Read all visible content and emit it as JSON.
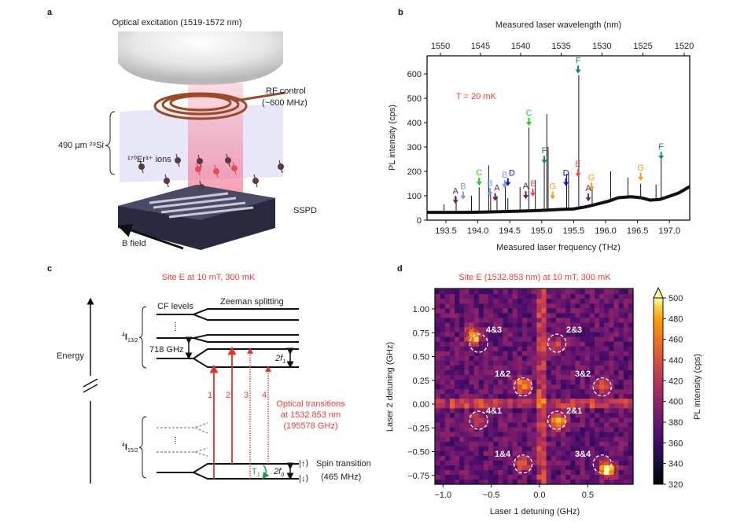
{
  "panel_letters": {
    "a": "a",
    "b": "b",
    "c": "c",
    "d": "d"
  },
  "panel_a": {
    "optical_excitation": "Optical excitation (1519-1572 nm)",
    "rf_control_1": "RF control",
    "rf_control_2": "(~600 MHz)",
    "si_thickness": "490 µm ²⁸Si",
    "ions": "¹⁷⁰Er³⁺ ions",
    "sspd": "SSPD",
    "b_field": "B field",
    "colors": {
      "coil": "#9a4a26",
      "beam": "#f7a8b8",
      "sspd": "#2a2a3e",
      "si_block": "#c9c9f0"
    }
  },
  "panel_c": {
    "title": "Site E at 10 mT, 300 mK",
    "energy": "Energy",
    "cf_levels": "CF levels",
    "zeeman": "Zeeman splitting",
    "upper_manifold": {
      "sup": "4",
      "main": "I",
      "sub": "13/2"
    },
    "lower_manifold": {
      "sup": "4",
      "main": "I",
      "sub": "15/2"
    },
    "cf_gap": "718 GHz",
    "upper_split": {
      "main": "2f",
      "sub": "1"
    },
    "lower_split": {
      "main": "2f",
      "sub": "0"
    },
    "transitions": [
      "1",
      "2",
      "3",
      "4"
    ],
    "optical_1": "Optical transitions",
    "optical_2": "at 1532.853 nm",
    "optical_3": "(195578 GHz)",
    "t1": {
      "main": "T",
      "sub": "1"
    },
    "spin_up": "|↑⟩",
    "spin_down": "|↓⟩",
    "spin_1": "Spin transition",
    "spin_2": "(465 MHz)",
    "colors": {
      "transition": "#e8302a",
      "t1": "#1aa050",
      "dashed_level": "#999999"
    }
  },
  "chart_data": [
    {
      "type": "line",
      "panel": "b",
      "xlabel": "Measured laser frequency (THz)",
      "x2label": "Measured laser wavelength (nm)",
      "ylabel": "PL intensity (cps)",
      "annotation": "T = 20 mK",
      "xlim": [
        193.2,
        197.32
      ],
      "ylim": [
        0,
        674
      ],
      "xticks": [
        193.5,
        194.0,
        194.5,
        195.0,
        195.5,
        196.0,
        196.5,
        197.0
      ],
      "x2ticks": [
        1550,
        1545,
        1540,
        1535,
        1530,
        1525,
        1520
      ],
      "yticks": [
        0,
        100,
        200,
        300,
        400,
        500,
        600
      ],
      "baseline": [
        [
          193.2,
          32
        ],
        [
          193.5,
          32
        ],
        [
          193.8,
          32
        ],
        [
          194.1,
          33
        ],
        [
          194.4,
          35
        ],
        [
          194.7,
          37
        ],
        [
          195.0,
          40
        ],
        [
          195.3,
          44
        ],
        [
          195.5,
          46
        ],
        [
          195.7,
          55
        ],
        [
          195.9,
          68
        ],
        [
          196.05,
          78
        ],
        [
          196.2,
          92
        ],
        [
          196.4,
          96
        ],
        [
          196.55,
          92
        ],
        [
          196.7,
          82
        ],
        [
          196.85,
          85
        ],
        [
          197.0,
          98
        ],
        [
          197.15,
          112
        ],
        [
          197.32,
          138
        ]
      ],
      "peaks": [
        [
          193.47,
          65
        ],
        [
          193.66,
          95
        ],
        [
          193.9,
          100
        ],
        [
          194.02,
          135
        ],
        [
          194.17,
          225
        ],
        [
          194.2,
          115
        ],
        [
          194.3,
          100
        ],
        [
          194.43,
          150
        ],
        [
          194.47,
          90
        ],
        [
          194.66,
          135
        ],
        [
          194.8,
          380
        ],
        [
          194.9,
          165
        ],
        [
          195.04,
          240
        ],
        [
          195.08,
          435
        ],
        [
          195.1,
          300
        ],
        [
          195.39,
          190
        ],
        [
          195.42,
          190
        ],
        [
          195.58,
          595
        ],
        [
          195.79,
          130
        ],
        [
          196.08,
          200
        ],
        [
          196.35,
          175
        ],
        [
          196.55,
          150
        ],
        [
          196.79,
          145
        ],
        [
          196.87,
          250
        ]
      ],
      "site_labels": [
        {
          "label": "A",
          "f": 193.65,
          "v": 70
        },
        {
          "label": "B",
          "f": 193.77,
          "v": 88
        },
        {
          "label": "C",
          "f": 194.02,
          "v": 145
        },
        {
          "label": "B",
          "f": 194.19,
          "v": 102
        },
        {
          "label": "A",
          "f": 194.27,
          "v": 82
        },
        {
          "label": "B",
          "f": 194.42,
          "v": 135
        },
        {
          "label": "D",
          "f": 194.47,
          "v": 143
        },
        {
          "label": "A",
          "f": 194.75,
          "v": 90
        },
        {
          "label": "C",
          "f": 194.8,
          "v": 390
        },
        {
          "label": "E",
          "f": 194.86,
          "v": 100
        },
        {
          "label": "F",
          "f": 195.04,
          "v": 235
        },
        {
          "label": "G",
          "f": 195.17,
          "v": 88
        },
        {
          "label": "D",
          "f": 195.38,
          "v": 143
        },
        {
          "label": "E",
          "f": 195.57,
          "v": 180
        },
        {
          "label": "F",
          "f": 195.57,
          "v": 605
        },
        {
          "label": "A",
          "f": 195.73,
          "v": 80
        },
        {
          "label": "G",
          "f": 195.78,
          "v": 125
        },
        {
          "label": "G",
          "f": 196.55,
          "v": 165
        },
        {
          "label": "F",
          "f": 196.87,
          "v": 252
        }
      ],
      "site_colors": {
        "A": "#6b2555",
        "B": "#7b9fd8",
        "C": "#22cc22",
        "D": "#1414d0",
        "E": "#ea4c4c",
        "F": "#178080",
        "G": "#ff9a12"
      }
    },
    {
      "type": "heatmap",
      "panel": "d",
      "title": "Site E (1532.853 nm) at 10 mT, 300 mK",
      "xlabel": "Laser 1 detuning (GHz)",
      "ylabel": "Laser 2 detuning (GHz)",
      "colorbar_label": "PL intensity (cps)",
      "colormap": "inferno",
      "xlim": [
        -1.08,
        0.97
      ],
      "ylim": [
        -0.84,
        1.21
      ],
      "xticks": [
        -1.0,
        -0.5,
        0.0,
        0.5
      ],
      "yticks": [
        1.0,
        0.75,
        0.5,
        0.25,
        0.0,
        -0.25,
        -0.5,
        -0.75
      ],
      "ytick_labels": [
        "1.00",
        "0.75",
        "0.50",
        "0.25",
        "0.00",
        "−0.25",
        "−0.50",
        "−0.75"
      ],
      "xtick_labels": [
        "−1.0",
        "−0.5",
        "0.0",
        "0.5"
      ],
      "clim": [
        320,
        500
      ],
      "cticks": [
        320,
        340,
        360,
        380,
        400,
        420,
        440,
        460,
        480,
        500
      ],
      "background": 378,
      "resonance_lines": {
        "x": 0.02,
        "y": 0.02,
        "level": 425
      },
      "peaks": [
        {
          "label": "4&3",
          "x": -0.63,
          "y": 0.64,
          "hot": [
            -0.68,
            0.72
          ],
          "value": 500
        },
        {
          "label": "2&3",
          "x": 0.18,
          "y": 0.64,
          "hot": [
            0.18,
            0.62
          ],
          "value": 435
        },
        {
          "label": "1&2",
          "x": -0.17,
          "y": 0.18,
          "hot": [
            -0.17,
            0.2
          ],
          "value": 485
        },
        {
          "label": "3&2",
          "x": 0.65,
          "y": 0.18,
          "hot": [
            0.65,
            0.2
          ],
          "value": 435
        },
        {
          "label": "4&1",
          "x": -0.63,
          "y": -0.17,
          "hot": [
            -0.65,
            -0.17
          ],
          "value": 425
        },
        {
          "label": "2&1",
          "x": 0.18,
          "y": -0.17,
          "hot": [
            0.19,
            -0.17
          ],
          "value": 495
        },
        {
          "label": "1&4",
          "x": -0.17,
          "y": -0.63,
          "hot": [
            -0.17,
            -0.62
          ],
          "value": 445
        },
        {
          "label": "3&4",
          "x": 0.65,
          "y": -0.63,
          "hot": [
            0.7,
            -0.68
          ],
          "value": 500
        }
      ],
      "dotted_circles": [
        [
          -0.68,
          0.71
        ],
        [
          0.7,
          -0.69
        ]
      ]
    }
  ]
}
